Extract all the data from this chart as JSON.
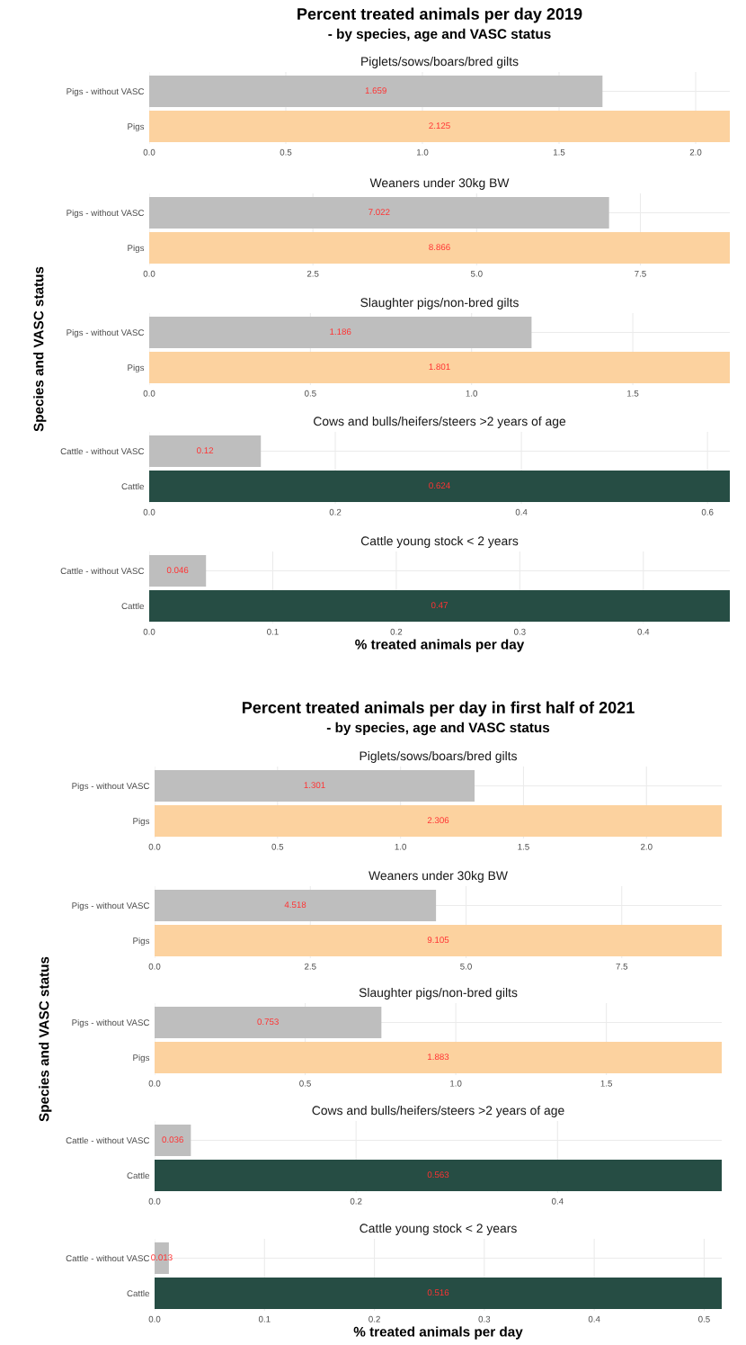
{
  "chart_data": [
    {
      "type": "bar",
      "orientation": "horizontal",
      "annotations": [
        "Percent treated animals per day 2019",
        "- by species, age and VASC status"
      ],
      "title": "Piglets/sows/boars/bred gilts",
      "categories": [
        "Pigs - without VASC",
        "Pigs"
      ],
      "values": [
        1.659,
        2.125
      ],
      "colors": [
        "#bebebe",
        "#fcd29f"
      ],
      "xlim": [
        0,
        2.125
      ],
      "xticks": [
        {
          "value": 0,
          "label": "0.0"
        },
        {
          "value": 0.5,
          "label": "0.5"
        },
        {
          "value": 1,
          "label": "1.0"
        },
        {
          "value": 1.5,
          "label": "1.5"
        },
        {
          "value": 2,
          "label": "2.0"
        }
      ],
      "grid": true,
      "data_labels": true
    },
    {
      "type": "bar",
      "orientation": "horizontal",
      "title": "Weaners under 30kg BW",
      "categories": [
        "Pigs - without VASC",
        "Pigs"
      ],
      "values": [
        7.022,
        8.866
      ],
      "colors": [
        "#bebebe",
        "#fcd29f"
      ],
      "xlim": [
        0,
        8.866
      ],
      "xticks": [
        {
          "value": 0,
          "label": "0.0"
        },
        2.5,
        {
          "value": 5,
          "label": "5.0"
        },
        7.5
      ],
      "grid": true,
      "data_labels": true
    },
    {
      "type": "bar",
      "orientation": "horizontal",
      "title": "Slaughter pigs/non-bred gilts",
      "ylabel": "Species and VASC status",
      "categories": [
        "Pigs - without VASC",
        "Pigs"
      ],
      "values": [
        1.186,
        1.801
      ],
      "colors": [
        "#bebebe",
        "#fcd29f"
      ],
      "xlim": [
        0,
        1.801
      ],
      "xticks": [
        {
          "value": 0,
          "label": "0.0"
        },
        0.5,
        {
          "value": 1,
          "label": "1.0"
        },
        1.5
      ],
      "grid": true,
      "data_labels": true
    },
    {
      "type": "bar",
      "orientation": "horizontal",
      "title": "Cows and bulls/heifers/steers >2 years of age",
      "categories": [
        "Cattle - without VASC",
        "Cattle"
      ],
      "values": [
        0.12,
        0.624
      ],
      "colors": [
        "#bebebe",
        "#264d44"
      ],
      "xlim": [
        0,
        0.624
      ],
      "xticks": [
        {
          "value": 0,
          "label": "0.0"
        },
        0.2,
        0.4,
        0.6
      ],
      "grid": true,
      "data_labels": true
    },
    {
      "type": "bar",
      "orientation": "horizontal",
      "title": "Cattle young stock < 2 years",
      "xlabel": "% treated animals per day",
      "categories": [
        "Cattle - without VASC",
        "Cattle"
      ],
      "values": [
        0.046,
        0.47
      ],
      "colors": [
        "#bebebe",
        "#264d44"
      ],
      "xlim": [
        0,
        0.47
      ],
      "xticks": [
        {
          "value": 0,
          "label": "0.0"
        },
        0.1,
        0.2,
        0.3,
        0.4
      ],
      "grid": true,
      "data_labels": true
    },
    {
      "type": "bar",
      "orientation": "horizontal",
      "annotations": [
        "Percent treated animals per day in first half of 2021",
        "- by species, age and VASC status"
      ],
      "title": "Piglets/sows/boars/bred gilts",
      "categories": [
        "Pigs - without VASC",
        "Pigs"
      ],
      "values": [
        1.301,
        2.306
      ],
      "colors": [
        "#bebebe",
        "#fcd29f"
      ],
      "xlim": [
        0,
        2.306
      ],
      "xticks": [
        {
          "value": 0,
          "label": "0.0"
        },
        0.5,
        {
          "value": 1,
          "label": "1.0"
        },
        1.5,
        {
          "value": 2,
          "label": "2.0"
        }
      ],
      "grid": true,
      "data_labels": true
    },
    {
      "type": "bar",
      "orientation": "horizontal",
      "title": "Weaners under 30kg BW",
      "categories": [
        "Pigs - without VASC",
        "Pigs"
      ],
      "values": [
        4.518,
        9.105
      ],
      "colors": [
        "#bebebe",
        "#fcd29f"
      ],
      "xlim": [
        0,
        9.105
      ],
      "xticks": [
        {
          "value": 0,
          "label": "0.0"
        },
        2.5,
        {
          "value": 5,
          "label": "5.0"
        },
        7.5
      ],
      "grid": true,
      "data_labels": true
    },
    {
      "type": "bar",
      "orientation": "horizontal",
      "title": "Slaughter pigs/non-bred gilts",
      "ylabel": "Species and VASC status",
      "categories": [
        "Pigs - without VASC",
        "Pigs"
      ],
      "values": [
        0.753,
        1.883
      ],
      "colors": [
        "#bebebe",
        "#fcd29f"
      ],
      "xlim": [
        0,
        1.883
      ],
      "xticks": [
        {
          "value": 0,
          "label": "0.0"
        },
        0.5,
        {
          "value": 1,
          "label": "1.0"
        },
        1.5
      ],
      "grid": true,
      "data_labels": true
    },
    {
      "type": "bar",
      "orientation": "horizontal",
      "title": "Cows and bulls/heifers/steers >2 years of age",
      "categories": [
        "Cattle - without VASC",
        "Cattle"
      ],
      "values": [
        0.036,
        0.563
      ],
      "colors": [
        "#bebebe",
        "#264d44"
      ],
      "xlim": [
        0,
        0.563
      ],
      "xticks": [
        {
          "value": 0,
          "label": "0.0"
        },
        0.2,
        0.4
      ],
      "grid": true,
      "data_labels": true
    },
    {
      "type": "bar",
      "orientation": "horizontal",
      "title": "Cattle young stock < 2 years",
      "xlabel": "% treated animals per day",
      "categories": [
        "Cattle - without VASC",
        "Cattle"
      ],
      "values": [
        0.013,
        0.516
      ],
      "colors": [
        "#bebebe",
        "#264d44"
      ],
      "xlim": [
        0,
        0.516
      ],
      "xticks": [
        {
          "value": 0,
          "label": "0.0"
        },
        0.1,
        0.2,
        0.3,
        0.4,
        0.5
      ],
      "grid": true,
      "data_labels": true
    }
  ]
}
